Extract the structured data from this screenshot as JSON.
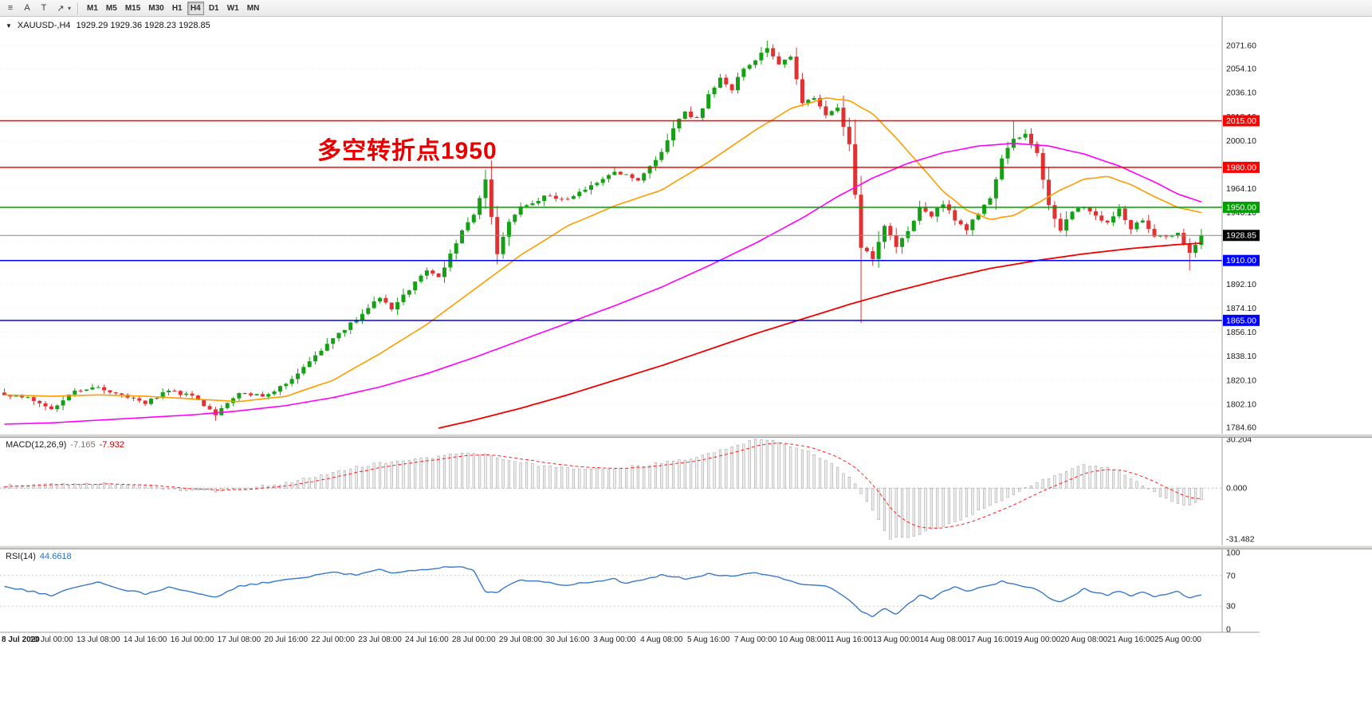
{
  "toolbar": {
    "icons": [
      {
        "name": "chart-list-icon",
        "glyph": "≡"
      },
      {
        "name": "font-icon",
        "glyph": "A"
      },
      {
        "name": "text-label-icon",
        "glyph": "T"
      },
      {
        "name": "draw-arrow-icon",
        "glyph": "↗"
      }
    ],
    "caret": "▾",
    "timeframes": [
      "M1",
      "M5",
      "M15",
      "M30",
      "H1",
      "H4",
      "D1",
      "W1",
      "MN"
    ],
    "active_timeframe": "H4"
  },
  "chart": {
    "collapse_icon": "▼",
    "title": "XAUUSD-,H4",
    "ohlc": "1929.29 1929.36 1928.23 1928.85",
    "annotation": "多空转折点1950",
    "annotation_color": "#e80000"
  },
  "chart_data": {
    "type": "candlestick",
    "symbol": "XAUUSD-",
    "period": "H4",
    "bars": 205,
    "up_color": "#16a016",
    "down_color": "#e03232",
    "price_axis": {
      "ticks": [
        "2071.60",
        "2054.10",
        "2036.10",
        "2018.10",
        "2000.10",
        "1982.10",
        "1964.10",
        "1946.10",
        "1928.10",
        "1910.10",
        "1892.10",
        "1874.10",
        "1856.10",
        "1838.10",
        "1820.10",
        "1802.10",
        "1784.60"
      ]
    },
    "levels": [
      {
        "price": 2015.0,
        "label": "2015.00",
        "color": "#ff0000"
      },
      {
        "price": 1980.0,
        "label": "1980.00",
        "color": "#ff0000"
      },
      {
        "price": 1950.0,
        "label": "1950.00",
        "color": "#00a000"
      },
      {
        "price": 1910.0,
        "label": "1910.00",
        "color": "#0000ff"
      },
      {
        "price": 1865.0,
        "label": "1865.00",
        "color": "#0000ff"
      }
    ],
    "bid": {
      "price": 1928.85,
      "label": "1928.85",
      "line_color": "#8a8a8a",
      "badge_bg": "#000000"
    },
    "close_keyframes": [
      [
        0,
        1810
      ],
      [
        4,
        1806
      ],
      [
        8,
        1799
      ],
      [
        12,
        1812
      ],
      [
        16,
        1815
      ],
      [
        20,
        1809
      ],
      [
        24,
        1803
      ],
      [
        28,
        1812
      ],
      [
        32,
        1808
      ],
      [
        36,
        1794
      ],
      [
        40,
        1810
      ],
      [
        44,
        1808
      ],
      [
        48,
        1817
      ],
      [
        52,
        1833
      ],
      [
        56,
        1852
      ],
      [
        60,
        1866
      ],
      [
        64,
        1882
      ],
      [
        66,
        1874
      ],
      [
        70,
        1893
      ],
      [
        72,
        1902
      ],
      [
        74,
        1897
      ],
      [
        78,
        1932
      ],
      [
        80,
        1944
      ],
      [
        82,
        1972
      ],
      [
        84,
        1915
      ],
      [
        86,
        1940
      ],
      [
        88,
        1950
      ],
      [
        92,
        1958
      ],
      [
        96,
        1956
      ],
      [
        100,
        1966
      ],
      [
        104,
        1976
      ],
      [
        108,
        1971
      ],
      [
        112,
        1992
      ],
      [
        114,
        2010
      ],
      [
        116,
        2021
      ],
      [
        118,
        2016
      ],
      [
        120,
        2034
      ],
      [
        122,
        2048
      ],
      [
        124,
        2039
      ],
      [
        126,
        2055
      ],
      [
        128,
        2061
      ],
      [
        130,
        2070
      ],
      [
        132,
        2057
      ],
      [
        134,
        2063
      ],
      [
        136,
        2029
      ],
      [
        138,
        2033
      ],
      [
        140,
        2019
      ],
      [
        142,
        2026
      ],
      [
        144,
        1997
      ],
      [
        146,
        1920
      ],
      [
        148,
        1912
      ],
      [
        150,
        1936
      ],
      [
        152,
        1921
      ],
      [
        154,
        1931
      ],
      [
        156,
        1950
      ],
      [
        158,
        1944
      ],
      [
        160,
        1953
      ],
      [
        162,
        1940
      ],
      [
        164,
        1934
      ],
      [
        166,
        1946
      ],
      [
        168,
        1956
      ],
      [
        170,
        1986
      ],
      [
        172,
        2001
      ],
      [
        174,
        2006
      ],
      [
        176,
        1991
      ],
      [
        178,
        1952
      ],
      [
        180,
        1933
      ],
      [
        182,
        1947
      ],
      [
        184,
        1951
      ],
      [
        186,
        1944
      ],
      [
        188,
        1938
      ],
      [
        190,
        1948
      ],
      [
        192,
        1934
      ],
      [
        194,
        1941
      ],
      [
        196,
        1929
      ],
      [
        198,
        1927
      ],
      [
        200,
        1931
      ],
      [
        202,
        1916
      ],
      [
        204,
        1928.85
      ]
    ],
    "wick_overrides": {
      "36": {
        "l": 1789.5
      },
      "82": {
        "h": 1975.8
      },
      "84": {
        "l": 1907.0
      },
      "130": {
        "h": 2075.3
      },
      "146": {
        "l": 1863.0
      },
      "172": {
        "h": 2014.6
      },
      "202": {
        "l": 1902.5
      }
    },
    "ma": [
      {
        "name": "ma-fast-line",
        "color": "#ff9c00",
        "width": 1.6,
        "points": [
          [
            0,
            1809
          ],
          [
            8,
            1808
          ],
          [
            16,
            1809
          ],
          [
            24,
            1808
          ],
          [
            32,
            1806
          ],
          [
            40,
            1804
          ],
          [
            48,
            1808
          ],
          [
            56,
            1820
          ],
          [
            64,
            1840
          ],
          [
            72,
            1862
          ],
          [
            80,
            1888
          ],
          [
            88,
            1914
          ],
          [
            96,
            1936
          ],
          [
            104,
            1951
          ],
          [
            112,
            1963
          ],
          [
            120,
            1984
          ],
          [
            128,
            2008
          ],
          [
            134,
            2024
          ],
          [
            140,
            2032
          ],
          [
            144,
            2030
          ],
          [
            148,
            2020
          ],
          [
            152,
            2002
          ],
          [
            156,
            1982
          ],
          [
            160,
            1962
          ],
          [
            164,
            1948
          ],
          [
            168,
            1941
          ],
          [
            172,
            1944
          ],
          [
            176,
            1953
          ],
          [
            180,
            1963
          ],
          [
            184,
            1971
          ],
          [
            188,
            1973
          ],
          [
            192,
            1967
          ],
          [
            196,
            1958
          ],
          [
            200,
            1950
          ],
          [
            204,
            1946
          ]
        ]
      },
      {
        "name": "ma-mid-line",
        "color": "#ff00ff",
        "width": 1.6,
        "points": [
          [
            0,
            1787
          ],
          [
            8,
            1788
          ],
          [
            16,
            1790
          ],
          [
            24,
            1792
          ],
          [
            32,
            1794
          ],
          [
            40,
            1797
          ],
          [
            48,
            1801
          ],
          [
            56,
            1807
          ],
          [
            64,
            1815
          ],
          [
            72,
            1825
          ],
          [
            80,
            1837
          ],
          [
            88,
            1850
          ],
          [
            96,
            1863
          ],
          [
            104,
            1876
          ],
          [
            112,
            1890
          ],
          [
            120,
            1906
          ],
          [
            128,
            1923
          ],
          [
            136,
            1942
          ],
          [
            142,
            1958
          ],
          [
            148,
            1972
          ],
          [
            154,
            1983
          ],
          [
            160,
            1991
          ],
          [
            166,
            1996
          ],
          [
            172,
            1998
          ],
          [
            178,
            1996
          ],
          [
            184,
            1990
          ],
          [
            190,
            1981
          ],
          [
            196,
            1969
          ],
          [
            200,
            1960
          ],
          [
            204,
            1954
          ]
        ]
      },
      {
        "name": "ma-slow-line",
        "color": "#f00000",
        "width": 1.8,
        "points": [
          [
            74,
            1784
          ],
          [
            80,
            1790
          ],
          [
            88,
            1799
          ],
          [
            96,
            1809
          ],
          [
            104,
            1820
          ],
          [
            112,
            1831
          ],
          [
            120,
            1843
          ],
          [
            128,
            1855
          ],
          [
            136,
            1866
          ],
          [
            144,
            1877
          ],
          [
            152,
            1887
          ],
          [
            160,
            1896
          ],
          [
            168,
            1904
          ],
          [
            176,
            1910
          ],
          [
            184,
            1915
          ],
          [
            192,
            1919
          ],
          [
            200,
            1922
          ],
          [
            204,
            1923
          ]
        ]
      }
    ],
    "macd": {
      "label": "MACD(12,26,9)",
      "main_value": "-7.165",
      "signal_value": "-7.932",
      "axis": [
        "30.204",
        "0.000",
        "-31.482"
      ],
      "hist_fill": "#f0f0f0",
      "hist_stroke": "#a4a4a4",
      "signal_color": "#ff2020",
      "keyframes": [
        [
          0,
          1.5
        ],
        [
          6,
          2.5
        ],
        [
          12,
          2
        ],
        [
          18,
          2.8
        ],
        [
          24,
          1
        ],
        [
          30,
          -1
        ],
        [
          36,
          -2
        ],
        [
          42,
          0.5
        ],
        [
          48,
          3
        ],
        [
          54,
          8
        ],
        [
          60,
          13
        ],
        [
          66,
          16.5
        ],
        [
          72,
          18.5
        ],
        [
          78,
          22
        ],
        [
          82,
          21
        ],
        [
          86,
          17.5
        ],
        [
          90,
          14.5
        ],
        [
          96,
          12.5
        ],
        [
          102,
          12
        ],
        [
          108,
          13.5
        ],
        [
          114,
          16.5
        ],
        [
          120,
          21
        ],
        [
          124,
          25.5
        ],
        [
          128,
          30.2
        ],
        [
          132,
          28.5
        ],
        [
          136,
          24
        ],
        [
          140,
          17.5
        ],
        [
          144,
          7
        ],
        [
          147,
          -8
        ],
        [
          151,
          -31.48
        ],
        [
          155,
          -29.5
        ],
        [
          159,
          -24.5
        ],
        [
          163,
          -19
        ],
        [
          167,
          -12.5
        ],
        [
          171,
          -6
        ],
        [
          175,
          1.5
        ],
        [
          179,
          8
        ],
        [
          183,
          13.5
        ],
        [
          186,
          14.5
        ],
        [
          190,
          10
        ],
        [
          194,
          2
        ],
        [
          197,
          -5
        ],
        [
          200,
          -9.5
        ],
        [
          202,
          -10
        ],
        [
          204,
          -7.165
        ]
      ]
    },
    "rsi": {
      "label": "RSI(14)",
      "value": "44.6618",
      "axis": [
        "100",
        "70",
        "30",
        "0"
      ],
      "grid_levels": [
        70,
        30
      ],
      "color": "#3878c8",
      "keyframes": [
        [
          0,
          56
        ],
        [
          4,
          50
        ],
        [
          8,
          44
        ],
        [
          12,
          55
        ],
        [
          16,
          61
        ],
        [
          20,
          52
        ],
        [
          24,
          46
        ],
        [
          28,
          54
        ],
        [
          32,
          49
        ],
        [
          36,
          42
        ],
        [
          40,
          56
        ],
        [
          44,
          60
        ],
        [
          48,
          64
        ],
        [
          52,
          69
        ],
        [
          56,
          74
        ],
        [
          60,
          71
        ],
        [
          64,
          79
        ],
        [
          66,
          74
        ],
        [
          70,
          77
        ],
        [
          74,
          80
        ],
        [
          78,
          82
        ],
        [
          80,
          76
        ],
        [
          82,
          50
        ],
        [
          84,
          48
        ],
        [
          86,
          58
        ],
        [
          88,
          64
        ],
        [
          92,
          61
        ],
        [
          96,
          57
        ],
        [
          100,
          62
        ],
        [
          104,
          65
        ],
        [
          106,
          60
        ],
        [
          110,
          66
        ],
        [
          112,
          71
        ],
        [
          116,
          66
        ],
        [
          120,
          72
        ],
        [
          124,
          69
        ],
        [
          128,
          73
        ],
        [
          132,
          67
        ],
        [
          136,
          59
        ],
        [
          140,
          57
        ],
        [
          142,
          48
        ],
        [
          144,
          38
        ],
        [
          146,
          24
        ],
        [
          148,
          17
        ],
        [
          150,
          27
        ],
        [
          152,
          20
        ],
        [
          154,
          33
        ],
        [
          156,
          44
        ],
        [
          158,
          40
        ],
        [
          160,
          50
        ],
        [
          162,
          55
        ],
        [
          164,
          49
        ],
        [
          166,
          53
        ],
        [
          168,
          57
        ],
        [
          170,
          62
        ],
        [
          172,
          60
        ],
        [
          174,
          55
        ],
        [
          176,
          52
        ],
        [
          178,
          40
        ],
        [
          180,
          35
        ],
        [
          182,
          44
        ],
        [
          184,
          52
        ],
        [
          186,
          47
        ],
        [
          188,
          45
        ],
        [
          190,
          50
        ],
        [
          192,
          44
        ],
        [
          194,
          49
        ],
        [
          196,
          42
        ],
        [
          198,
          46
        ],
        [
          200,
          49
        ],
        [
          202,
          41
        ],
        [
          204,
          44.66
        ]
      ]
    },
    "time_axis": [
      "8 Jul 2020",
      "10 Jul 00:00",
      "13 Jul 08:00",
      "14 Jul 16:00",
      "16 Jul 00:00",
      "17 Jul 08:00",
      "20 Jul 16:00",
      "22 Jul 00:00",
      "23 Jul 08:00",
      "24 Jul 16:00",
      "28 Jul 00:00",
      "29 Jul 08:00",
      "30 Jul 16:00",
      "3 Aug 00:00",
      "4 Aug 08:00",
      "5 Aug 16:00",
      "7 Aug 00:00",
      "10 Aug 08:00",
      "11 Aug 16:00",
      "13 Aug 00:00",
      "14 Aug 08:00",
      "17 Aug 16:00",
      "19 Aug 00:00",
      "20 Aug 08:00",
      "21 Aug 16:00",
      "25 Aug 00:00"
    ]
  }
}
